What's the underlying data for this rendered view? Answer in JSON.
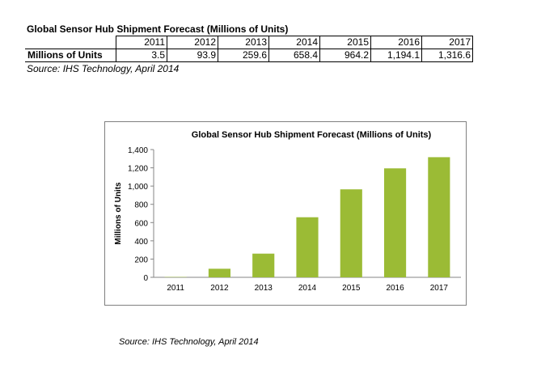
{
  "table": {
    "title": "Global Sensor Hub Shipment Forecast (Millions of Units)",
    "years": [
      "2011",
      "2012",
      "2013",
      "2014",
      "2015",
      "2016",
      "2017"
    ],
    "row_label": "Millions of Units",
    "values": [
      "3.5",
      "93.9",
      "259.6",
      "658.4",
      "964.2",
      "1,194.1",
      "1,316.6"
    ]
  },
  "source_top": "Source: IHS Technology, April 2014",
  "source_bottom": "Source: IHS Technology, April 2014",
  "chart_data": {
    "type": "bar",
    "title": "Global Sensor Hub Shipment Forecast (Millions of Units)",
    "xlabel": "",
    "ylabel": "Millions of Units",
    "categories": [
      "2011",
      "2012",
      "2013",
      "2014",
      "2015",
      "2016",
      "2017"
    ],
    "values": [
      3.5,
      93.9,
      259.6,
      658.4,
      964.2,
      1194.1,
      1316.6
    ],
    "ylim": [
      0,
      1400
    ],
    "yticks": [
      0,
      200,
      400,
      600,
      800,
      1000,
      1200,
      1400
    ],
    "ytick_labels": [
      "0",
      "200",
      "400",
      "600",
      "800",
      "1,000",
      "1,200",
      "1,400"
    ],
    "grid": false,
    "legend": "none",
    "bar_color": "#9bbb35"
  }
}
